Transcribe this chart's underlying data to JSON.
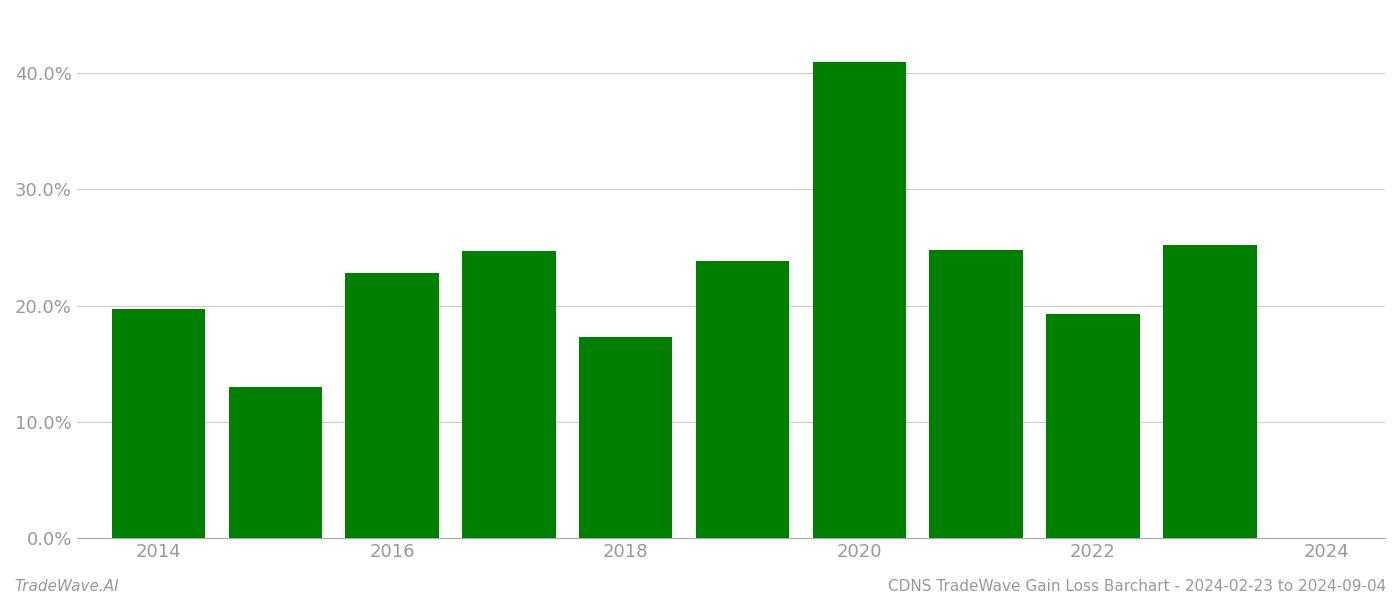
{
  "years": [
    2014,
    2015,
    2016,
    2017,
    2018,
    2019,
    2020,
    2021,
    2022,
    2023
  ],
  "values": [
    0.197,
    0.13,
    0.228,
    0.247,
    0.173,
    0.238,
    0.41,
    0.248,
    0.193,
    0.252
  ],
  "bar_color": "#008000",
  "background_color": "#ffffff",
  "footer_left": "TradeWave.AI",
  "footer_right": "CDNS TradeWave Gain Loss Barchart - 2024-02-23 to 2024-09-04",
  "ylim": [
    0,
    0.45
  ],
  "yticks": [
    0.0,
    0.1,
    0.2,
    0.3,
    0.4
  ],
  "ytick_labels": [
    "0.0%",
    "10.0%",
    "20.0%",
    "30.0%",
    "40.0%"
  ],
  "xtick_positions": [
    2014,
    2016,
    2018,
    2020,
    2022,
    2024
  ],
  "xtick_labels": [
    "2014",
    "2016",
    "2018",
    "2020",
    "2022",
    "2024"
  ],
  "grid_color": "#cccccc",
  "tick_color": "#999999",
  "spine_color": "#aaaaaa",
  "footer_fontsize": 11,
  "tick_fontsize": 13,
  "bar_width": 0.8,
  "xlim": [
    2013.3,
    2024.5
  ]
}
